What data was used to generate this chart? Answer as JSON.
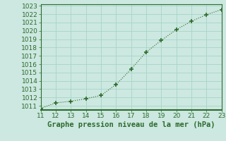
{
  "x": [
    11,
    12,
    13,
    14,
    15,
    16,
    17,
    18,
    19,
    20,
    21,
    22,
    23
  ],
  "y": [
    1010.7,
    1011.35,
    1011.55,
    1011.85,
    1012.25,
    1013.55,
    1015.4,
    1017.45,
    1018.85,
    1020.15,
    1021.15,
    1021.95,
    1022.55
  ],
  "xlim": [
    11,
    23
  ],
  "ylim": [
    1010.5,
    1023.2
  ],
  "yticks": [
    1011,
    1012,
    1013,
    1014,
    1015,
    1016,
    1017,
    1018,
    1019,
    1020,
    1021,
    1022,
    1023
  ],
  "xticks": [
    11,
    12,
    13,
    14,
    15,
    16,
    17,
    18,
    19,
    20,
    21,
    22,
    23
  ],
  "line_color": "#2d6a2d",
  "marker_color": "#2d6a2d",
  "bg_plot": "#cce8e0",
  "bg_fig": "#cce8e0",
  "grid_color": "#a8d4c8",
  "border_color": "#2d6a2d",
  "xlabel": "Graphe pression niveau de la mer (hPa)",
  "xlabel_color": "#2d6a2d",
  "tick_color": "#2d6a2d",
  "tick_fontsize": 6.5,
  "xlabel_fontsize": 7.5
}
